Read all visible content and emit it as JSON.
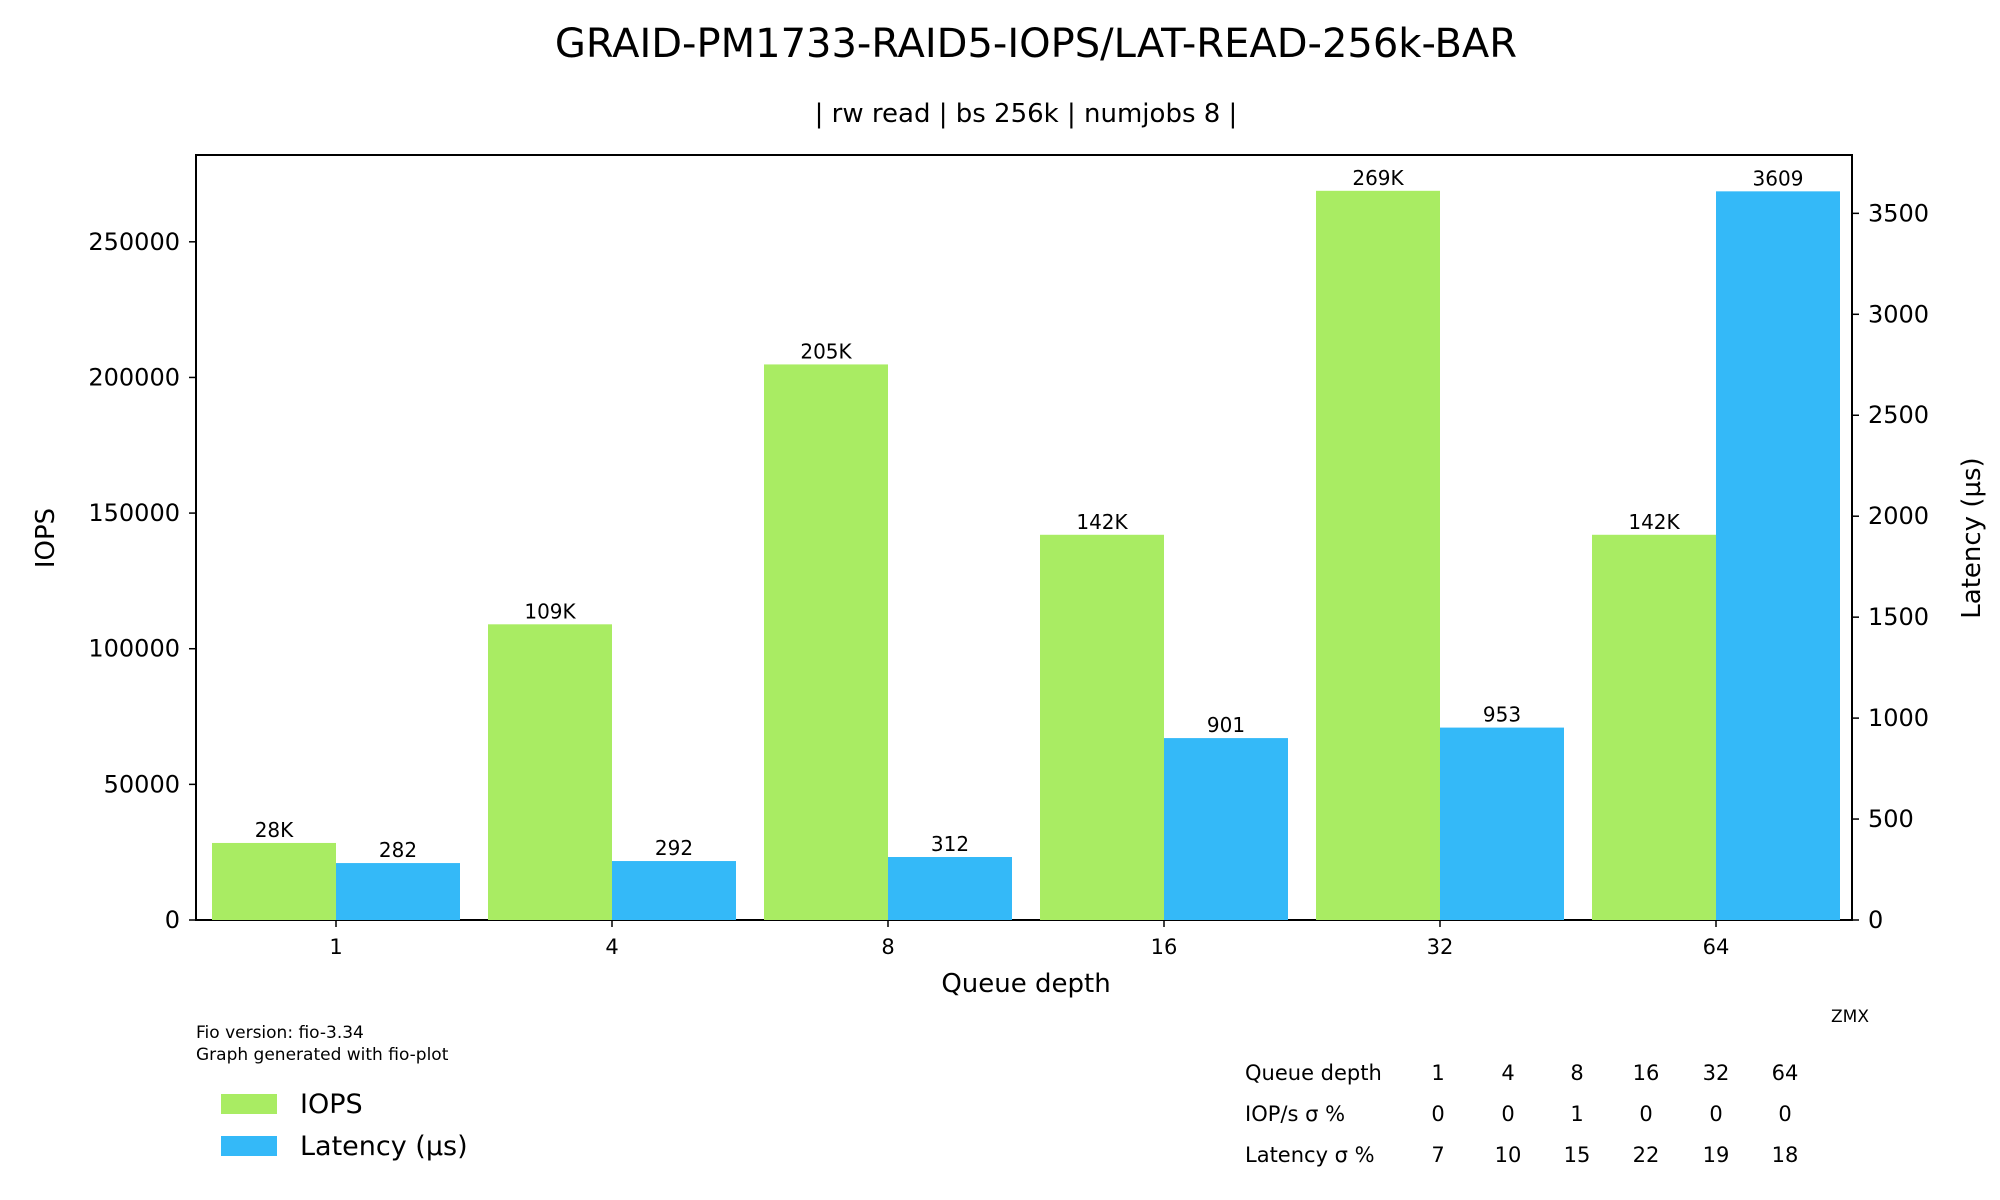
{
  "chart_data": {
    "type": "bar",
    "title": "GRAID-PM1733-RAID5-IOPS/LAT-READ-256k-BAR",
    "subtitle": "| rw read | bs 256k | numjobs 8 |",
    "xlabel": "Queue depth",
    "ylabel_left": "IOPS",
    "ylabel_right": "Latency (µs)",
    "categories": [
      "1",
      "4",
      "8",
      "16",
      "32",
      "64"
    ],
    "ylim_left": [
      0,
      282000
    ],
    "ylim_right": [
      0,
      3789
    ],
    "yticks_left": [
      0,
      50000,
      100000,
      150000,
      200000,
      250000
    ],
    "yticks_right": [
      0,
      500,
      1000,
      1500,
      2000,
      2500,
      3000,
      3500
    ],
    "grid": false,
    "legend_placement": "bottom-left, below plot",
    "series": [
      {
        "name": "IOPS",
        "axis": "left",
        "color": "#a9ec63",
        "values": [
          28400,
          109000,
          204800,
          142000,
          268800,
          142000
        ],
        "labels": [
          "28K",
          "109K",
          "205K",
          "142K",
          "269K",
          "142K"
        ]
      },
      {
        "name": "Latency (µs)",
        "axis": "right",
        "color": "#34b9f8",
        "values": [
          282,
          292,
          312,
          901,
          953,
          3609
        ],
        "labels": [
          "282",
          "292",
          "312",
          "901",
          "953",
          "3609"
        ]
      }
    ],
    "footer": {
      "line1": "Fio version: fio-3.34",
      "line2": "Graph generated with fio-plot",
      "source": "ZMX"
    },
    "stats_table": {
      "rows": [
        {
          "label": "Queue depth",
          "values": [
            "1",
            "4",
            "8",
            "16",
            "32",
            "64"
          ]
        },
        {
          "label": "IOP/s σ %",
          "values": [
            "0",
            "0",
            "1",
            "0",
            "0",
            "0"
          ]
        },
        {
          "label": "Latency σ %",
          "values": [
            "7",
            "10",
            "15",
            "22",
            "19",
            "18"
          ]
        }
      ]
    }
  }
}
